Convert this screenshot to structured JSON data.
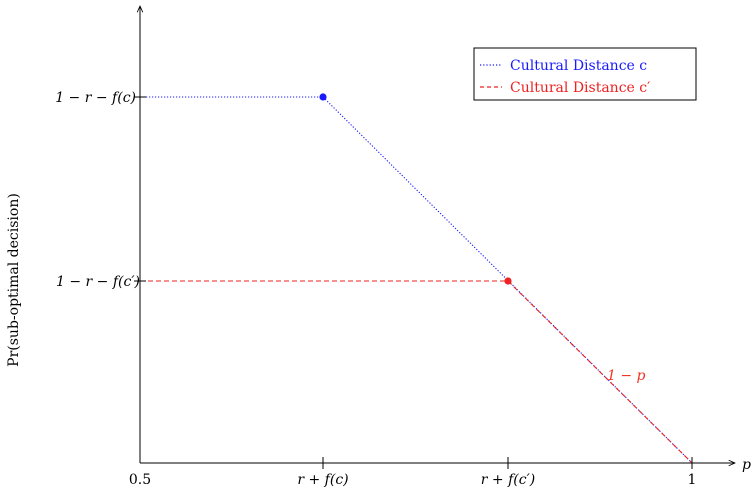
{
  "chart_data": {
    "type": "line",
    "title": "",
    "xlabel": "p",
    "ylabel": "Pr(sub-optimal decision)",
    "x_ticks": [
      "0.5",
      "r + f(c)",
      "r + f(c′)",
      "1"
    ],
    "y_ticks": [
      "1 − r − f(c)",
      "1 − r − f(c′)"
    ],
    "grid": false,
    "legend_position": "top-right",
    "series": [
      {
        "name": "Cultural Distance c",
        "color": "#1a1aff",
        "dash": "dotted",
        "points": [
          {
            "x": "0.5",
            "y": "1 − r − f(c)"
          },
          {
            "x": "r + f(c)",
            "y": "1 − r − f(c)"
          },
          {
            "x": "1",
            "y": "0"
          }
        ],
        "marker_at": "r + f(c)"
      },
      {
        "name": "Cultural Distance c′",
        "color": "#ee2222",
        "dash": "dashed",
        "points": [
          {
            "x": "0.5",
            "y": "1 − r − f(c′)"
          },
          {
            "x": "r + f(c′)",
            "y": "1 − r − f(c′)"
          },
          {
            "x": "1",
            "y": "0"
          }
        ],
        "marker_at": "r + f(c′)"
      }
    ],
    "annotations": [
      {
        "text": "1 − p",
        "color": "#ee2222"
      }
    ]
  }
}
